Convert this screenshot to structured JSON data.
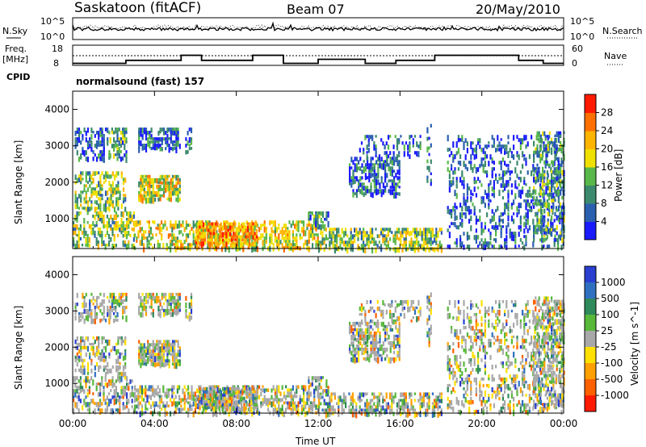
{
  "header": {
    "station": "Saskatoon (fitACF)",
    "beam": "Beam 07",
    "date": "20/May/2010"
  },
  "noise_panel": {
    "left_label": "N.Sky",
    "right_label": "N.Search",
    "left_ticks": [
      "10^5",
      "10^0"
    ],
    "right_ticks": [
      "10^5",
      "10^0"
    ]
  },
  "freq_panel": {
    "left_label_1": "Freq.",
    "left_label_2": "[MHz]",
    "right_label": "Nave",
    "left_ticks": [
      "18",
      "8"
    ],
    "right_ticks": [
      "60",
      "0"
    ]
  },
  "cpid": {
    "label": "CPID",
    "value": "normalsound (fast) 157"
  },
  "x_axis": {
    "label": "Time UT",
    "ticks": [
      "00:00",
      "04:00",
      "08:00",
      "12:00",
      "16:00",
      "20:00",
      "00:00"
    ]
  },
  "y_axis": {
    "label": "Slant Range [km]",
    "ticks": [
      "1000",
      "2000",
      "3000",
      "4000"
    ]
  },
  "colorbar_power": {
    "label": "Power [dB]",
    "ticks": [
      "4",
      "8",
      "12",
      "16",
      "20",
      "24",
      "28"
    ],
    "colors": [
      "#1a1aff",
      "#2a5fb0",
      "#3c8a6e",
      "#59b84a",
      "#f0e000",
      "#ffb400",
      "#ff7000",
      "#ff1a00"
    ]
  },
  "colorbar_velocity": {
    "label": "Velocity [m s^-1]",
    "ticks": [
      "1000",
      "500",
      "100",
      "25",
      "-25",
      "-100",
      "-500",
      "-1000"
    ],
    "colors": [
      "#2a3fd0",
      "#2f6fc0",
      "#2e8a5a",
      "#58b83a",
      "#a8a8a8",
      "#ffe000",
      "#ffa000",
      "#ff6000",
      "#ff1a00"
    ]
  },
  "chart_data": [
    {
      "type": "line",
      "title": "Saskatoon (fitACF) Beam 07 20/May/2010",
      "series": [
        {
          "name": "N.Sky"
        },
        {
          "name": "N.Search"
        }
      ]
    },
    {
      "type": "line",
      "series": [
        {
          "name": "Freq.",
          "x": [
            0,
            2.6,
            2.6,
            5.3,
            5.3,
            6.3,
            6.3,
            8.8,
            8.8,
            10.3,
            10.3,
            12,
            12,
            14.3,
            14.3,
            15.8,
            15.8,
            17.7,
            17.7,
            21.8,
            21.8,
            23,
            23,
            24
          ],
          "values": [
            9,
            9,
            10.5,
            10.5,
            13,
            13,
            10.5,
            10.5,
            13,
            13,
            9,
            9,
            11,
            11,
            9,
            9,
            10.5,
            10.5,
            13,
            13,
            10.5,
            10.5,
            9,
            9
          ]
        },
        {
          "name": "Nave"
        }
      ]
    },
    {
      "type": "heatmap",
      "ylabel": "Slant Range [km]",
      "xlabel": "Time UT",
      "ylim": [
        180,
        4500
      ]
    },
    {
      "type": "heatmap",
      "ylabel": "Slant Range [km]",
      "xlabel": "Time UT",
      "ylim": [
        180,
        4500
      ]
    }
  ]
}
